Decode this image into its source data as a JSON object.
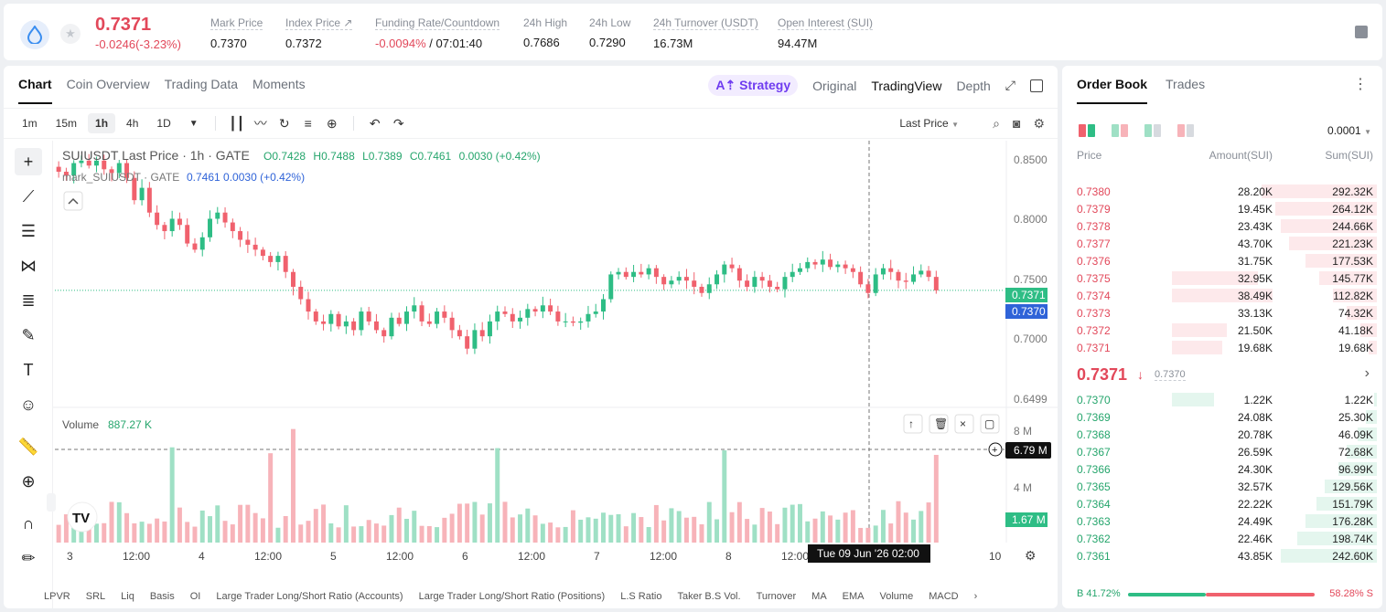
{
  "ticker": {
    "last_price": "0.7371",
    "change": "-0.0246(-3.23%)",
    "stats": [
      {
        "label": "Mark Price",
        "value": "0.7370"
      },
      {
        "label": "Index Price ↗",
        "value": "0.7372"
      },
      {
        "label": "Funding Rate/Countdown",
        "value_neg": "-0.0094%",
        "value": " / 07:01:40"
      },
      {
        "label": "24h High",
        "value": "0.7686"
      },
      {
        "label": "24h Low",
        "value": "0.7290"
      },
      {
        "label": "24h Turnover (USDT)",
        "value": "16.73M"
      },
      {
        "label": "Open Interest (SUI)",
        "value": "94.47M"
      }
    ]
  },
  "chart_panel": {
    "tabs": [
      "Chart",
      "Coin Overview",
      "Trading Data",
      "Moments"
    ],
    "strategy_label": "A⇡ Strategy",
    "views": [
      "Original",
      "TradingView",
      "Depth"
    ],
    "timeframes": [
      "1m",
      "15m",
      "1h",
      "4h",
      "1D"
    ],
    "price_type": "Last Price",
    "legend_title": "SUIUSDT Last Price · 1h · GATE",
    "ohlc": {
      "o": "0.7428",
      "h": "0.7488",
      "l": "0.7389",
      "c": "0.7461",
      "chg": "0.0030 (+0.42%)"
    },
    "mark_legend": "mark_SUIUSDT · GATE",
    "mark_values": "0.7461  0.0030  (+0.42%)",
    "volume_label": "Volume",
    "volume_value": "887.27 K",
    "y_ticks": [
      "0.8500",
      "0.8000",
      "0.7500",
      "0.7000",
      "0.6499"
    ],
    "vol_ticks": [
      "8 M",
      "4 M"
    ],
    "last_tag": "0.7371",
    "mark_tag": "0.7370",
    "cursor_vol_tag": "6.79 M",
    "last_vol_tag": "1.67 M",
    "x_ticks": [
      "3",
      "12:00",
      "4",
      "12:00",
      "5",
      "12:00",
      "6",
      "12:00",
      "7",
      "12:00",
      "8",
      "12:00",
      "10"
    ],
    "cursor_time": "Tue 09 Jun '26   02:00",
    "indicators": [
      "LPVR",
      "SRL",
      "Liq",
      "Basis",
      "OI",
      "Large Trader Long/Short Ratio (Accounts)",
      "Large Trader Long/Short Ratio (Positions)",
      "L.S Ratio",
      "Taker B.S Vol.",
      "Turnover",
      "MA",
      "EMA",
      "Volume",
      "MACD"
    ]
  },
  "chart_data": {
    "type": "candlestick",
    "symbol": "SUIUSDT",
    "interval": "1h",
    "ylim": [
      0.6499,
      0.85
    ],
    "path": [
      0.833,
      0.83,
      0.84,
      0.842,
      0.838,
      0.842,
      0.835,
      0.832,
      0.84,
      0.828,
      0.81,
      0.82,
      0.8,
      0.79,
      0.785,
      0.795,
      0.79,
      0.775,
      0.77,
      0.78,
      0.795,
      0.8,
      0.792,
      0.785,
      0.778,
      0.774,
      0.77,
      0.765,
      0.76,
      0.765,
      0.752,
      0.74,
      0.73,
      0.72,
      0.712,
      0.71,
      0.718,
      0.708,
      0.712,
      0.705,
      0.72,
      0.712,
      0.705,
      0.7,
      0.715,
      0.71,
      0.72,
      0.725,
      0.712,
      0.71,
      0.72,
      0.715,
      0.705,
      0.7,
      0.69,
      0.705,
      0.7,
      0.712,
      0.72,
      0.718,
      0.712,
      0.715,
      0.722,
      0.72,
      0.725,
      0.72,
      0.712,
      0.712,
      0.711,
      0.712,
      0.718,
      0.72,
      0.73,
      0.75,
      0.752,
      0.748,
      0.752,
      0.75,
      0.755,
      0.748,
      0.742,
      0.745,
      0.748,
      0.745,
      0.74,
      0.735,
      0.742,
      0.75,
      0.758,
      0.755,
      0.745,
      0.74,
      0.748,
      0.745,
      0.74,
      0.738,
      0.748,
      0.752,
      0.755,
      0.76,
      0.758,
      0.762,
      0.756,
      0.758,
      0.755,
      0.752,
      0.742,
      0.735,
      0.75,
      0.755,
      0.752,
      0.745,
      0.744,
      0.75,
      0.753,
      0.748,
      0.7371
    ],
    "volume_scale_max": 9.5,
    "volume_spike_indices": [
      28,
      31,
      58,
      88,
      116
    ]
  },
  "order_book": {
    "tabs": [
      "Order Book",
      "Trades"
    ],
    "precision": "0.0001",
    "headers": {
      "price": "Price",
      "amount": "Amount(SUI)",
      "sum": "Sum(SUI)"
    },
    "asks": [
      {
        "price": "0.7380",
        "amount": "28.20K",
        "sum": "292.32K",
        "amt_frac": 0,
        "sum_frac": 0.42
      },
      {
        "price": "0.7379",
        "amount": "19.45K",
        "sum": "264.12K",
        "amt_frac": 0,
        "sum_frac": 0.37
      },
      {
        "price": "0.7378",
        "amount": "23.43K",
        "sum": "244.66K",
        "amt_frac": 0,
        "sum_frac": 0.35
      },
      {
        "price": "0.7377",
        "amount": "43.70K",
        "sum": "221.23K",
        "amt_frac": 0,
        "sum_frac": 0.32
      },
      {
        "price": "0.7376",
        "amount": "31.75K",
        "sum": "177.53K",
        "amt_frac": 0,
        "sum_frac": 0.26
      },
      {
        "price": "0.7375",
        "amount": "32.95K",
        "sum": "145.77K",
        "amt_frac": 0.39,
        "sum_frac": 0.21
      },
      {
        "price": "0.7374",
        "amount": "38.49K",
        "sum": "112.82K",
        "amt_frac": 0.46,
        "sum_frac": 0.16
      },
      {
        "price": "0.7373",
        "amount": "33.13K",
        "sum": "74.32K",
        "amt_frac": 0,
        "sum_frac": 0.11
      },
      {
        "price": "0.7372",
        "amount": "21.50K",
        "sum": "41.18K",
        "amt_frac": 0.25,
        "sum_frac": 0.06
      },
      {
        "price": "0.7371",
        "amount": "19.68K",
        "sum": "19.68K",
        "amt_frac": 0.23,
        "sum_frac": 0.03
      }
    ],
    "mid_price": "0.7371",
    "mid_mark": "0.7370",
    "bids": [
      {
        "price": "0.7370",
        "amount": "1.22K",
        "sum": "1.22K",
        "amt_frac": 0.19,
        "sum_frac": 0.01
      },
      {
        "price": "0.7369",
        "amount": "24.08K",
        "sum": "25.30K",
        "amt_frac": 0,
        "sum_frac": 0.04
      },
      {
        "price": "0.7368",
        "amount": "20.78K",
        "sum": "46.09K",
        "amt_frac": 0,
        "sum_frac": 0.07
      },
      {
        "price": "0.7367",
        "amount": "26.59K",
        "sum": "72.68K",
        "amt_frac": 0,
        "sum_frac": 0.11
      },
      {
        "price": "0.7366",
        "amount": "24.30K",
        "sum": "96.99K",
        "amt_frac": 0,
        "sum_frac": 0.14
      },
      {
        "price": "0.7365",
        "amount": "32.57K",
        "sum": "129.56K",
        "amt_frac": 0,
        "sum_frac": 0.19
      },
      {
        "price": "0.7364",
        "amount": "22.22K",
        "sum": "151.79K",
        "amt_frac": 0,
        "sum_frac": 0.22
      },
      {
        "price": "0.7363",
        "amount": "24.49K",
        "sum": "176.28K",
        "amt_frac": 0,
        "sum_frac": 0.26
      },
      {
        "price": "0.7362",
        "amount": "22.46K",
        "sum": "198.74K",
        "amt_frac": 0,
        "sum_frac": 0.29
      },
      {
        "price": "0.7361",
        "amount": "43.85K",
        "sum": "242.60K",
        "amt_frac": 0,
        "sum_frac": 0.35
      }
    ],
    "buy_ratio": "B 41.72%",
    "sell_ratio": "58.28% S",
    "buy_frac": 0.4172
  },
  "colors": {
    "up": "#2ebd85",
    "down": "#f0616d",
    "mark": "#2f63d8",
    "accent": "#6f3cf0"
  }
}
